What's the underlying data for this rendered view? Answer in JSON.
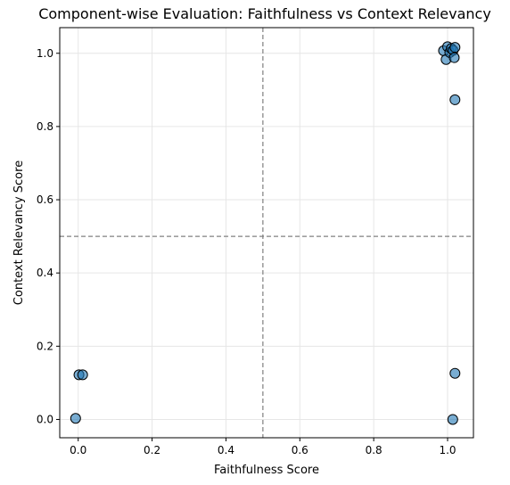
{
  "chart_data": {
    "type": "scatter",
    "title": "Component-wise Evaluation: Faithfulness vs Context Relevancy",
    "xlabel": "Faithfulness Score",
    "ylabel": "Context Relevancy Score",
    "xlim": [
      -0.05,
      1.07
    ],
    "ylim": [
      -0.05,
      1.07
    ],
    "xticks": [
      "0.0",
      "0.2",
      "0.4",
      "0.6",
      "0.8",
      "1.0"
    ],
    "xtick_values": [
      0.0,
      0.2,
      0.4,
      0.6,
      0.8,
      1.0
    ],
    "yticks": [
      "0.0",
      "0.2",
      "0.4",
      "0.6",
      "0.8",
      "1.0"
    ],
    "ytick_values": [
      0.0,
      0.2,
      0.4,
      0.6,
      0.8,
      1.0
    ],
    "grid": true,
    "reference_lines": {
      "x": 0.5,
      "y": 0.5
    },
    "series": [
      {
        "points": [
          {
            "x": -0.007,
            "y": 0.003
          },
          {
            "x": 0.002,
            "y": 0.122
          },
          {
            "x": 0.012,
            "y": 0.122
          },
          {
            "x": 0.989,
            "y": 1.007
          },
          {
            "x": 0.996,
            "y": 0.983
          },
          {
            "x": 1.0,
            "y": 1.018
          },
          {
            "x": 1.006,
            "y": 1.002
          },
          {
            "x": 1.01,
            "y": 1.013
          },
          {
            "x": 1.015,
            "y": 1.008
          },
          {
            "x": 1.02,
            "y": 1.016
          },
          {
            "x": 1.018,
            "y": 0.988
          },
          {
            "x": 1.02,
            "y": 0.873
          },
          {
            "x": 1.02,
            "y": 0.126
          },
          {
            "x": 1.014,
            "y": 0.0
          }
        ]
      }
    ],
    "colors": {
      "point_fill": "#1f77b4",
      "point_stroke": "#000000",
      "reference_line": "#808080",
      "grid": "#e6e6e6",
      "axis": "#000000"
    }
  }
}
